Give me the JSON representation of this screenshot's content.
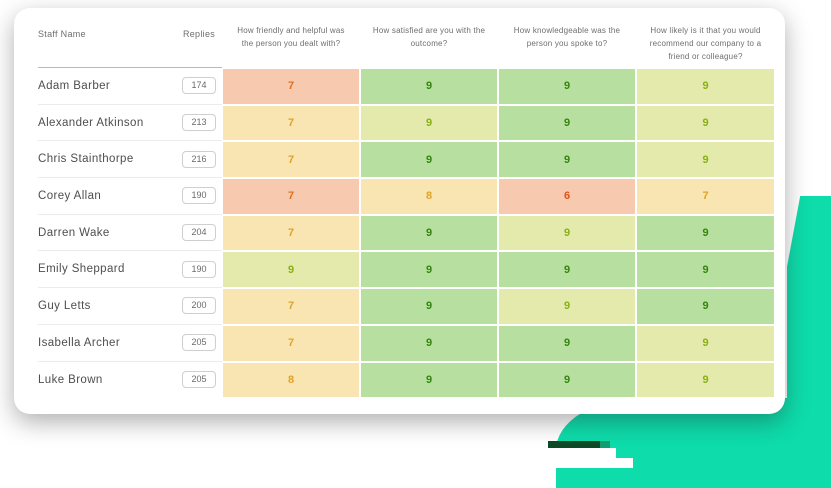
{
  "theme": {
    "css_vars": {
      "--teal": "#0edcab",
      "--teal-mid": "#12a071",
      "--dark-green": "#0c4a28",
      "--salmon-bg": "#f7c9af",
      "--salmon-text": "#e0701d",
      "--red-text": "#e1521c",
      "--yellow-bg": "#f8e5b1",
      "--yellow-text": "#dfa32a",
      "--green-bg": "#b7e0a0",
      "--green-text": "#35860e",
      "--lime-bg": "#e4eaab",
      "--lime-text": "#88b115"
    }
  },
  "table": {
    "headers": {
      "staff": "Staff Name",
      "replies": "Replies",
      "questions": [
        "How friendly and helpful was the person you dealt with?",
        "How satisfied are you with the outcome?",
        "How knowledgeable was the person you spoke to?",
        "How likely is it that you would recommend our company to a friend or colleague?"
      ]
    },
    "rows": [
      {
        "name": "Adam Barber",
        "replies": "174",
        "scores": [
          {
            "v": "7",
            "c": "salmon"
          },
          {
            "v": "9",
            "c": "green"
          },
          {
            "v": "9",
            "c": "green"
          },
          {
            "v": "9",
            "c": "lime"
          }
        ]
      },
      {
        "name": "Alexander Atkinson",
        "replies": "213",
        "scores": [
          {
            "v": "7",
            "c": "yellow"
          },
          {
            "v": "9",
            "c": "lime"
          },
          {
            "v": "9",
            "c": "green"
          },
          {
            "v": "9",
            "c": "lime"
          }
        ]
      },
      {
        "name": "Chris Stainthorpe",
        "replies": "216",
        "scores": [
          {
            "v": "7",
            "c": "yellow"
          },
          {
            "v": "9",
            "c": "green"
          },
          {
            "v": "9",
            "c": "green"
          },
          {
            "v": "9",
            "c": "lime"
          }
        ]
      },
      {
        "name": "Corey Allan",
        "replies": "190",
        "scores": [
          {
            "v": "7",
            "c": "salmon"
          },
          {
            "v": "8",
            "c": "yellow"
          },
          {
            "v": "6",
            "c": "red"
          },
          {
            "v": "7",
            "c": "yellow"
          }
        ]
      },
      {
        "name": "Darren Wake",
        "replies": "204",
        "scores": [
          {
            "v": "7",
            "c": "yellow"
          },
          {
            "v": "9",
            "c": "green"
          },
          {
            "v": "9",
            "c": "lime"
          },
          {
            "v": "9",
            "c": "green"
          }
        ]
      },
      {
        "name": "Emily Sheppard",
        "replies": "190",
        "scores": [
          {
            "v": "9",
            "c": "lime"
          },
          {
            "v": "9",
            "c": "green"
          },
          {
            "v": "9",
            "c": "green"
          },
          {
            "v": "9",
            "c": "green"
          }
        ]
      },
      {
        "name": "Guy Letts",
        "replies": "200",
        "scores": [
          {
            "v": "7",
            "c": "yellow"
          },
          {
            "v": "9",
            "c": "green"
          },
          {
            "v": "9",
            "c": "lime"
          },
          {
            "v": "9",
            "c": "green"
          }
        ]
      },
      {
        "name": "Isabella Archer",
        "replies": "205",
        "scores": [
          {
            "v": "7",
            "c": "yellow"
          },
          {
            "v": "9",
            "c": "green"
          },
          {
            "v": "9",
            "c": "green"
          },
          {
            "v": "9",
            "c": "lime"
          }
        ]
      },
      {
        "name": "Luke Brown",
        "replies": "205",
        "scores": [
          {
            "v": "8",
            "c": "yellow"
          },
          {
            "v": "9",
            "c": "green"
          },
          {
            "v": "9",
            "c": "green"
          },
          {
            "v": "9",
            "c": "lime"
          }
        ]
      }
    ]
  }
}
